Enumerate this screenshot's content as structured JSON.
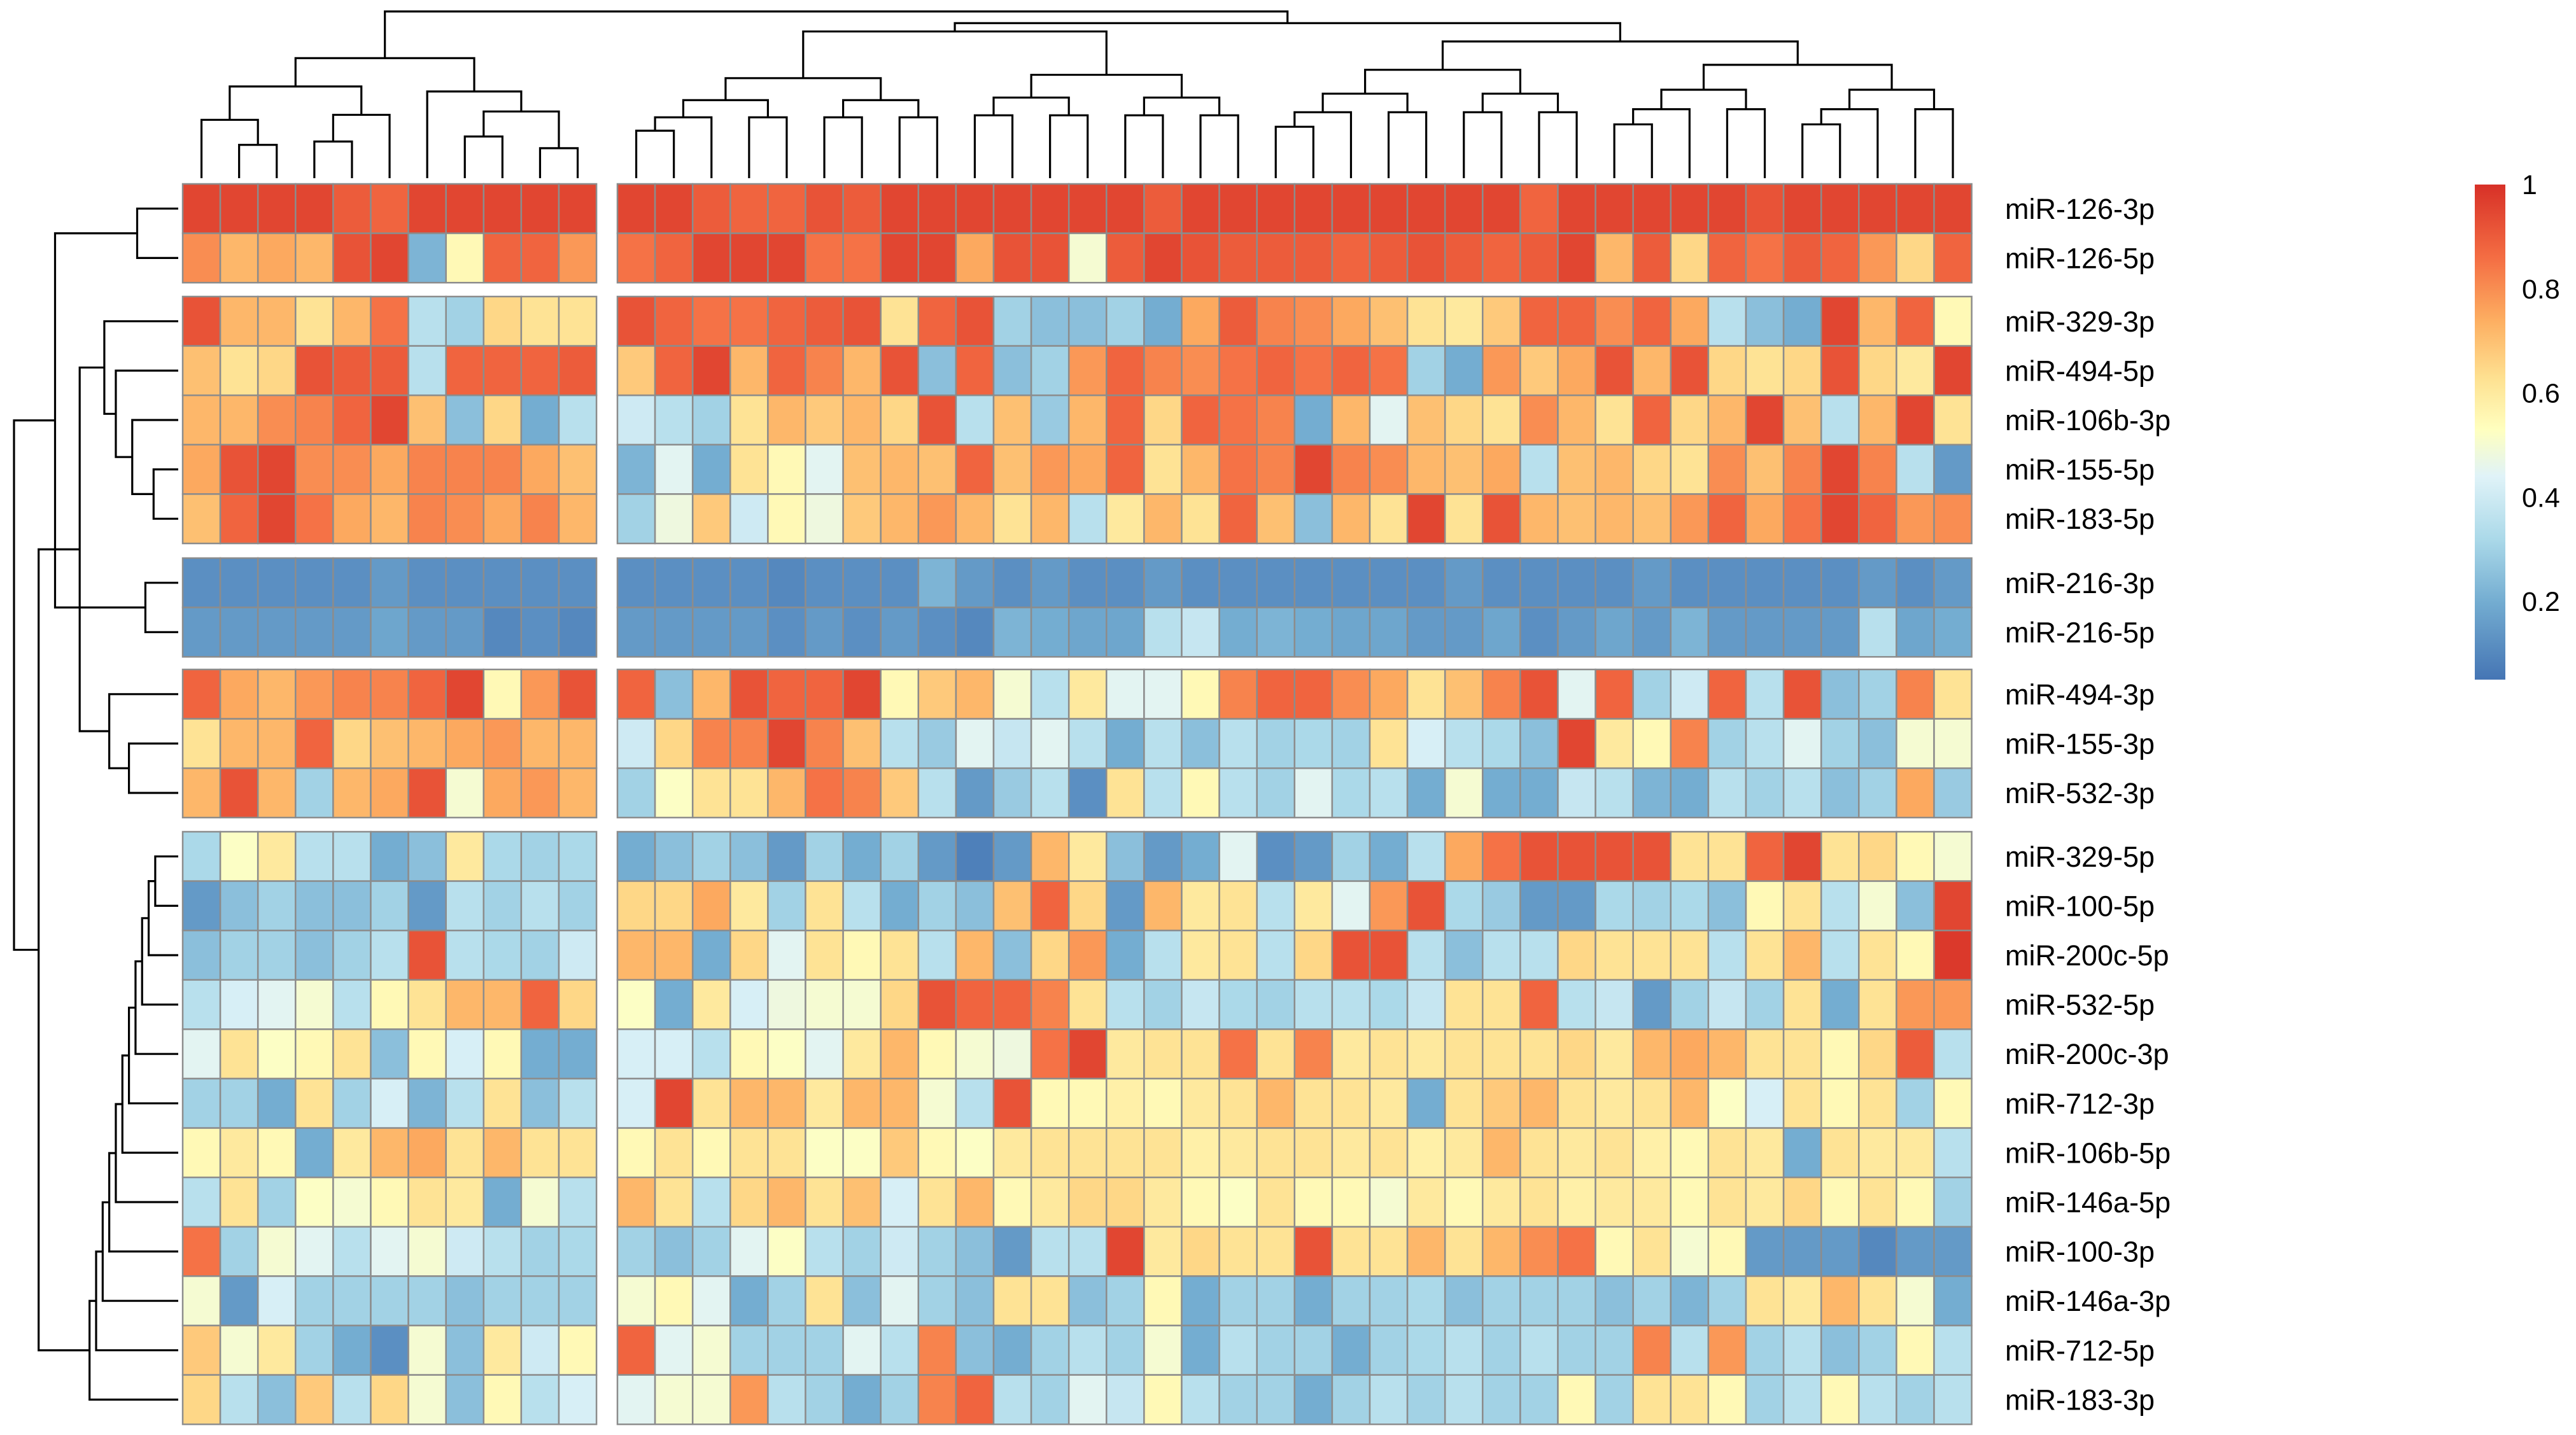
{
  "chart_data": {
    "type": "heatmap",
    "title": "",
    "row_labels": [
      "miR-126-3p",
      "miR-126-5p",
      "miR-329-3p",
      "miR-494-5p",
      "miR-106b-3p",
      "miR-155-5p",
      "miR-183-5p",
      "miR-216-3p",
      "miR-216-5p",
      "miR-494-3p",
      "miR-155-3p",
      "miR-532-3p",
      "miR-329-5p",
      "miR-100-5p",
      "miR-200c-5p",
      "miR-532-5p",
      "miR-200c-3p",
      "miR-712-3p",
      "miR-106b-5p",
      "miR-146a-5p",
      "miR-100-3p",
      "miR-146a-3p",
      "miR-712-5p",
      "miR-183-3p"
    ],
    "row_groups": [
      2,
      5,
      2,
      3,
      12
    ],
    "column_groups": [
      11,
      36
    ],
    "n_columns": 47,
    "values": [
      [
        0.95,
        0.95,
        0.95,
        0.95,
        0.9,
        0.88,
        0.95,
        0.95,
        0.95,
        0.95,
        0.95,
        0.95,
        0.95,
        0.9,
        0.88,
        0.88,
        0.92,
        0.9,
        0.95,
        0.95,
        0.95,
        0.95,
        0.95,
        0.95,
        0.95,
        0.9,
        0.95,
        0.95,
        0.95,
        0.95,
        0.95,
        0.95,
        0.95,
        0.95,
        0.95,
        0.88,
        0.95,
        0.95,
        0.95,
        0.95,
        0.95,
        0.92,
        0.95,
        0.95,
        0.95,
        0.95,
        0.95
      ],
      [
        0.8,
        0.72,
        0.75,
        0.72,
        0.92,
        0.95,
        0.22,
        0.55,
        0.88,
        0.88,
        0.78,
        0.85,
        0.88,
        0.95,
        0.95,
        0.95,
        0.85,
        0.85,
        0.95,
        0.95,
        0.75,
        0.92,
        0.92,
        0.5,
        0.9,
        0.95,
        0.92,
        0.9,
        0.9,
        0.9,
        0.88,
        0.9,
        0.92,
        0.9,
        0.88,
        0.9,
        0.95,
        0.72,
        0.9,
        0.65,
        0.88,
        0.85,
        0.9,
        0.88,
        0.78,
        0.65,
        0.88
      ],
      [
        0.92,
        0.72,
        0.72,
        0.62,
        0.72,
        0.85,
        0.35,
        0.3,
        0.65,
        0.62,
        0.62,
        0.92,
        0.88,
        0.85,
        0.85,
        0.88,
        0.9,
        0.92,
        0.62,
        0.88,
        0.92,
        0.3,
        0.25,
        0.25,
        0.3,
        0.2,
        0.75,
        0.9,
        0.82,
        0.8,
        0.75,
        0.7,
        0.62,
        0.6,
        0.68,
        0.88,
        0.88,
        0.8,
        0.88,
        0.75,
        0.35,
        0.25,
        0.2,
        0.95,
        0.72,
        0.88,
        0.55
      ],
      [
        0.7,
        0.62,
        0.65,
        0.92,
        0.9,
        0.9,
        0.35,
        0.88,
        0.88,
        0.88,
        0.9,
        0.68,
        0.88,
        0.95,
        0.72,
        0.88,
        0.82,
        0.72,
        0.92,
        0.25,
        0.88,
        0.25,
        0.3,
        0.78,
        0.88,
        0.82,
        0.8,
        0.85,
        0.88,
        0.85,
        0.88,
        0.85,
        0.3,
        0.2,
        0.78,
        0.68,
        0.75,
        0.92,
        0.72,
        0.92,
        0.65,
        0.62,
        0.65,
        0.92,
        0.65,
        0.6,
        0.95
      ],
      [
        0.72,
        0.72,
        0.8,
        0.82,
        0.88,
        0.95,
        0.7,
        0.25,
        0.65,
        0.2,
        0.35,
        0.4,
        0.35,
        0.3,
        0.62,
        0.72,
        0.68,
        0.72,
        0.65,
        0.92,
        0.35,
        0.7,
        0.28,
        0.72,
        0.88,
        0.65,
        0.88,
        0.85,
        0.82,
        0.2,
        0.72,
        0.45,
        0.7,
        0.65,
        0.62,
        0.8,
        0.72,
        0.62,
        0.88,
        0.65,
        0.72,
        0.95,
        0.7,
        0.35,
        0.72,
        0.95,
        0.62
      ],
      [
        0.75,
        0.92,
        0.95,
        0.8,
        0.8,
        0.75,
        0.82,
        0.82,
        0.82,
        0.75,
        0.7,
        0.22,
        0.45,
        0.2,
        0.62,
        0.55,
        0.45,
        0.7,
        0.72,
        0.7,
        0.88,
        0.7,
        0.78,
        0.75,
        0.88,
        0.62,
        0.72,
        0.85,
        0.82,
        0.95,
        0.82,
        0.8,
        0.72,
        0.7,
        0.75,
        0.35,
        0.7,
        0.72,
        0.65,
        0.62,
        0.8,
        0.7,
        0.82,
        0.95,
        0.82,
        0.35,
        0.15
      ],
      [
        0.7,
        0.88,
        0.95,
        0.85,
        0.75,
        0.72,
        0.82,
        0.8,
        0.75,
        0.82,
        0.72,
        0.3,
        0.48,
        0.68,
        0.4,
        0.55,
        0.48,
        0.68,
        0.72,
        0.78,
        0.72,
        0.62,
        0.72,
        0.35,
        0.6,
        0.72,
        0.62,
        0.88,
        0.7,
        0.25,
        0.72,
        0.62,
        0.95,
        0.62,
        0.92,
        0.72,
        0.7,
        0.72,
        0.7,
        0.78,
        0.88,
        0.75,
        0.85,
        0.95,
        0.88,
        0.78,
        0.8
      ],
      [
        0.12,
        0.12,
        0.12,
        0.12,
        0.12,
        0.15,
        0.12,
        0.12,
        0.12,
        0.12,
        0.12,
        0.12,
        0.12,
        0.12,
        0.12,
        0.1,
        0.12,
        0.12,
        0.12,
        0.22,
        0.15,
        0.12,
        0.15,
        0.12,
        0.12,
        0.15,
        0.12,
        0.12,
        0.12,
        0.12,
        0.12,
        0.12,
        0.12,
        0.15,
        0.12,
        0.12,
        0.12,
        0.12,
        0.15,
        0.12,
        0.12,
        0.12,
        0.12,
        0.12,
        0.15,
        0.12,
        0.15
      ],
      [
        0.15,
        0.15,
        0.15,
        0.15,
        0.15,
        0.18,
        0.15,
        0.15,
        0.1,
        0.12,
        0.1,
        0.15,
        0.15,
        0.15,
        0.15,
        0.12,
        0.15,
        0.12,
        0.15,
        0.12,
        0.1,
        0.22,
        0.2,
        0.18,
        0.18,
        0.35,
        0.38,
        0.2,
        0.22,
        0.2,
        0.18,
        0.18,
        0.15,
        0.15,
        0.18,
        0.12,
        0.15,
        0.18,
        0.15,
        0.22,
        0.15,
        0.15,
        0.15,
        0.15,
        0.35,
        0.18,
        0.2
      ],
      [
        0.88,
        0.75,
        0.72,
        0.78,
        0.82,
        0.82,
        0.88,
        0.95,
        0.55,
        0.78,
        0.92,
        0.88,
        0.25,
        0.72,
        0.92,
        0.88,
        0.88,
        0.95,
        0.55,
        0.68,
        0.72,
        0.5,
        0.35,
        0.6,
        0.45,
        0.45,
        0.55,
        0.82,
        0.88,
        0.88,
        0.8,
        0.75,
        0.62,
        0.7,
        0.82,
        0.92,
        0.45,
        0.88,
        0.3,
        0.4,
        0.88,
        0.35,
        0.92,
        0.25,
        0.3,
        0.82,
        0.62
      ],
      [
        0.62,
        0.72,
        0.72,
        0.88,
        0.65,
        0.7,
        0.72,
        0.75,
        0.78,
        0.72,
        0.72,
        0.4,
        0.65,
        0.82,
        0.82,
        0.95,
        0.82,
        0.7,
        0.35,
        0.28,
        0.45,
        0.38,
        0.45,
        0.35,
        0.2,
        0.35,
        0.25,
        0.35,
        0.3,
        0.32,
        0.3,
        0.62,
        0.42,
        0.35,
        0.32,
        0.25,
        0.95,
        0.6,
        0.55,
        0.82,
        0.3,
        0.35,
        0.45,
        0.3,
        0.25,
        0.5,
        0.5
      ],
      [
        0.72,
        0.92,
        0.72,
        0.3,
        0.72,
        0.75,
        0.92,
        0.5,
        0.75,
        0.78,
        0.72,
        0.3,
        0.52,
        0.62,
        0.62,
        0.72,
        0.85,
        0.82,
        0.68,
        0.35,
        0.15,
        0.28,
        0.35,
        0.12,
        0.62,
        0.35,
        0.55,
        0.35,
        0.3,
        0.45,
        0.32,
        0.35,
        0.2,
        0.5,
        0.2,
        0.2,
        0.38,
        0.35,
        0.22,
        0.2,
        0.35,
        0.3,
        0.35,
        0.25,
        0.3,
        0.75,
        0.28
      ],
      [
        0.32,
        0.52,
        0.6,
        0.35,
        0.35,
        0.2,
        0.25,
        0.6,
        0.32,
        0.3,
        0.32,
        0.2,
        0.25,
        0.3,
        0.25,
        0.15,
        0.3,
        0.2,
        0.3,
        0.15,
        0.08,
        0.15,
        0.72,
        0.6,
        0.25,
        0.15,
        0.2,
        0.45,
        0.12,
        0.15,
        0.3,
        0.2,
        0.35,
        0.75,
        0.85,
        0.92,
        0.92,
        0.92,
        0.92,
        0.62,
        0.62,
        0.88,
        0.95,
        0.62,
        0.65,
        0.55,
        0.5
      ],
      [
        0.15,
        0.25,
        0.3,
        0.25,
        0.25,
        0.3,
        0.15,
        0.35,
        0.3,
        0.35,
        0.3,
        0.65,
        0.65,
        0.75,
        0.6,
        0.3,
        0.62,
        0.35,
        0.2,
        0.3,
        0.25,
        0.7,
        0.88,
        0.65,
        0.15,
        0.72,
        0.6,
        0.62,
        0.35,
        0.6,
        0.45,
        0.78,
        0.92,
        0.32,
        0.28,
        0.15,
        0.15,
        0.32,
        0.3,
        0.32,
        0.25,
        0.55,
        0.62,
        0.35,
        0.5,
        0.25,
        0.95
      ],
      [
        0.25,
        0.3,
        0.3,
        0.25,
        0.3,
        0.35,
        0.92,
        0.35,
        0.32,
        0.3,
        0.4,
        0.72,
        0.72,
        0.2,
        0.65,
        0.45,
        0.62,
        0.55,
        0.62,
        0.35,
        0.72,
        0.25,
        0.65,
        0.78,
        0.2,
        0.35,
        0.6,
        0.62,
        0.35,
        0.65,
        0.92,
        0.92,
        0.35,
        0.25,
        0.35,
        0.35,
        0.65,
        0.62,
        0.62,
        0.62,
        0.35,
        0.62,
        0.72,
        0.35,
        0.62,
        0.55,
        0.98
      ],
      [
        0.35,
        0.42,
        0.45,
        0.5,
        0.35,
        0.55,
        0.62,
        0.72,
        0.72,
        0.88,
        0.65,
        0.52,
        0.2,
        0.6,
        0.42,
        0.48,
        0.5,
        0.5,
        0.65,
        0.92,
        0.88,
        0.88,
        0.82,
        0.62,
        0.35,
        0.3,
        0.38,
        0.32,
        0.3,
        0.35,
        0.35,
        0.32,
        0.38,
        0.62,
        0.62,
        0.88,
        0.35,
        0.38,
        0.15,
        0.3,
        0.38,
        0.3,
        0.62,
        0.2,
        0.62,
        0.78,
        0.78
      ],
      [
        0.45,
        0.62,
        0.52,
        0.55,
        0.62,
        0.25,
        0.55,
        0.42,
        0.55,
        0.2,
        0.2,
        0.42,
        0.42,
        0.35,
        0.55,
        0.52,
        0.45,
        0.6,
        0.72,
        0.55,
        0.5,
        0.48,
        0.85,
        0.95,
        0.6,
        0.62,
        0.62,
        0.85,
        0.62,
        0.82,
        0.6,
        0.62,
        0.6,
        0.62,
        0.62,
        0.62,
        0.65,
        0.6,
        0.72,
        0.75,
        0.72,
        0.62,
        0.62,
        0.55,
        0.65,
        0.9,
        0.35
      ],
      [
        0.3,
        0.3,
        0.2,
        0.62,
        0.3,
        0.42,
        0.22,
        0.35,
        0.62,
        0.25,
        0.35,
        0.42,
        0.95,
        0.62,
        0.72,
        0.72,
        0.6,
        0.72,
        0.72,
        0.5,
        0.35,
        0.92,
        0.55,
        0.55,
        0.58,
        0.55,
        0.6,
        0.62,
        0.72,
        0.62,
        0.62,
        0.6,
        0.2,
        0.62,
        0.68,
        0.72,
        0.62,
        0.6,
        0.62,
        0.72,
        0.52,
        0.42,
        0.62,
        0.55,
        0.62,
        0.3,
        0.55
      ],
      [
        0.55,
        0.6,
        0.55,
        0.2,
        0.6,
        0.72,
        0.75,
        0.62,
        0.72,
        0.62,
        0.62,
        0.55,
        0.62,
        0.55,
        0.62,
        0.62,
        0.52,
        0.52,
        0.68,
        0.55,
        0.52,
        0.6,
        0.62,
        0.62,
        0.62,
        0.62,
        0.58,
        0.6,
        0.62,
        0.62,
        0.6,
        0.62,
        0.58,
        0.6,
        0.72,
        0.62,
        0.6,
        0.62,
        0.58,
        0.55,
        0.62,
        0.6,
        0.2,
        0.62,
        0.6,
        0.6,
        0.35
      ],
      [
        0.35,
        0.62,
        0.3,
        0.52,
        0.5,
        0.55,
        0.62,
        0.6,
        0.2,
        0.5,
        0.35,
        0.72,
        0.62,
        0.35,
        0.65,
        0.72,
        0.62,
        0.7,
        0.42,
        0.62,
        0.72,
        0.55,
        0.6,
        0.65,
        0.65,
        0.6,
        0.55,
        0.52,
        0.62,
        0.55,
        0.55,
        0.5,
        0.6,
        0.55,
        0.6,
        0.62,
        0.58,
        0.6,
        0.6,
        0.55,
        0.62,
        0.6,
        0.65,
        0.55,
        0.62,
        0.55,
        0.3
      ],
      [
        0.85,
        0.3,
        0.5,
        0.45,
        0.35,
        0.45,
        0.5,
        0.4,
        0.35,
        0.3,
        0.32,
        0.3,
        0.25,
        0.3,
        0.45,
        0.52,
        0.35,
        0.3,
        0.4,
        0.3,
        0.25,
        0.15,
        0.35,
        0.35,
        0.95,
        0.6,
        0.65,
        0.62,
        0.62,
        0.92,
        0.62,
        0.62,
        0.72,
        0.62,
        0.72,
        0.8,
        0.85,
        0.55,
        0.62,
        0.5,
        0.55,
        0.15,
        0.15,
        0.15,
        0.1,
        0.15,
        0.15
      ],
      [
        0.5,
        0.15,
        0.42,
        0.3,
        0.3,
        0.3,
        0.3,
        0.25,
        0.3,
        0.3,
        0.3,
        0.5,
        0.55,
        0.45,
        0.2,
        0.3,
        0.62,
        0.25,
        0.45,
        0.3,
        0.25,
        0.62,
        0.62,
        0.25,
        0.3,
        0.55,
        0.2,
        0.3,
        0.3,
        0.2,
        0.3,
        0.3,
        0.32,
        0.25,
        0.3,
        0.3,
        0.3,
        0.25,
        0.3,
        0.22,
        0.3,
        0.62,
        0.6,
        0.72,
        0.62,
        0.5,
        0.2
      ],
      [
        0.68,
        0.5,
        0.6,
        0.3,
        0.2,
        0.12,
        0.5,
        0.25,
        0.6,
        0.4,
        0.55,
        0.88,
        0.45,
        0.5,
        0.3,
        0.3,
        0.3,
        0.45,
        0.35,
        0.82,
        0.25,
        0.2,
        0.3,
        0.35,
        0.3,
        0.5,
        0.2,
        0.35,
        0.3,
        0.3,
        0.2,
        0.3,
        0.32,
        0.35,
        0.3,
        0.35,
        0.3,
        0.3,
        0.82,
        0.35,
        0.78,
        0.3,
        0.35,
        0.25,
        0.3,
        0.55,
        0.35
      ],
      [
        0.65,
        0.35,
        0.25,
        0.68,
        0.35,
        0.65,
        0.5,
        0.25,
        0.55,
        0.35,
        0.42,
        0.45,
        0.5,
        0.5,
        0.78,
        0.35,
        0.3,
        0.2,
        0.3,
        0.82,
        0.88,
        0.35,
        0.3,
        0.45,
        0.38,
        0.55,
        0.35,
        0.3,
        0.3,
        0.2,
        0.3,
        0.35,
        0.3,
        0.35,
        0.3,
        0.3,
        0.55,
        0.3,
        0.62,
        0.62,
        0.55,
        0.3,
        0.35,
        0.55,
        0.35,
        0.3,
        0.35
      ]
    ],
    "color_scale": {
      "min": 0.05,
      "max": 1,
      "stops": [
        {
          "value": 0.05,
          "color": "#4575b4"
        },
        {
          "value": 0.2,
          "color": "#74add1"
        },
        {
          "value": 0.32,
          "color": "#abd9e9"
        },
        {
          "value": 0.44,
          "color": "#e0f3f8"
        },
        {
          "value": 0.53,
          "color": "#ffffbf"
        },
        {
          "value": 0.63,
          "color": "#fee090"
        },
        {
          "value": 0.74,
          "color": "#fdae61"
        },
        {
          "value": 0.86,
          "color": "#f46d43"
        },
        {
          "value": 1.0,
          "color": "#d73027"
        }
      ],
      "ticks": [
        {
          "value": 0.2,
          "label": "0.2"
        },
        {
          "value": 0.4,
          "label": "0.4"
        },
        {
          "value": 0.6,
          "label": "0.6"
        },
        {
          "value": 0.8,
          "label": "0.8"
        },
        {
          "value": 1.0,
          "label": "1"
        }
      ]
    },
    "legend_position": "right",
    "row_dendrogram": "left",
    "column_dendrogram": "top"
  }
}
